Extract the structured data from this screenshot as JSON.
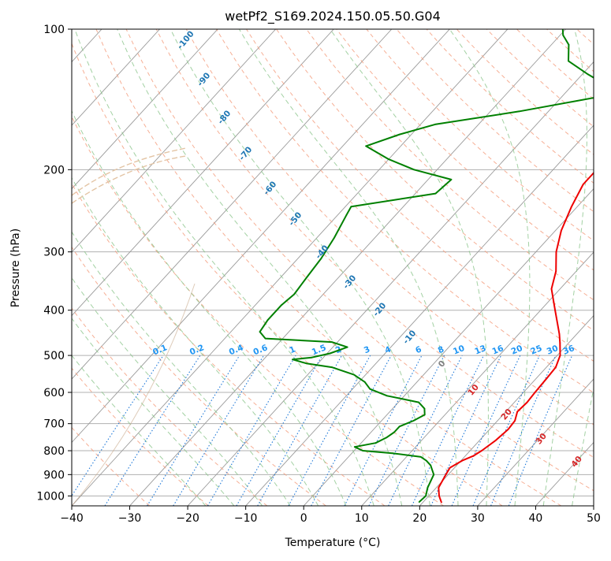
{
  "chart_data": {
    "type": "line",
    "subtype": "skew-t log-p",
    "title": "wetPf2_S169.2024.150.05.50.G04",
    "xlabel": "Temperature (°C)",
    "ylabel": "Pressure (hPa)",
    "xlim": [
      -40,
      50
    ],
    "ylim": [
      1050,
      100
    ],
    "y_scale": "log",
    "grid": true,
    "xticks": [
      "−40",
      "−30",
      "−20",
      "−10",
      "0",
      "10",
      "20",
      "30",
      "40",
      "50"
    ],
    "yticks": [
      "1000",
      "900",
      "800",
      "700",
      "600",
      "500",
      "400",
      "300",
      "200",
      "100"
    ],
    "series": [
      {
        "role": "temperature",
        "color": "#ee0000",
        "points": [
          {
            "p": 1032,
            "t": 23.2
          },
          {
            "p": 1000,
            "t": 21.8
          },
          {
            "p": 960,
            "t": 20.4
          },
          {
            "p": 900,
            "t": 19.6
          },
          {
            "p": 870,
            "t": 19.2
          },
          {
            "p": 840,
            "t": 20.2
          },
          {
            "p": 820,
            "t": 21.4
          },
          {
            "p": 800,
            "t": 22.0
          },
          {
            "p": 760,
            "t": 22.8
          },
          {
            "p": 720,
            "t": 23.2
          },
          {
            "p": 690,
            "t": 23.0
          },
          {
            "p": 660,
            "t": 22.0
          },
          {
            "p": 630,
            "t": 22.2
          },
          {
            "p": 600,
            "t": 22.0
          },
          {
            "p": 560,
            "t": 21.8
          },
          {
            "p": 530,
            "t": 21.6
          },
          {
            "p": 500,
            "t": 20.5
          },
          {
            "p": 470,
            "t": 18.5
          },
          {
            "p": 450,
            "t": 17.0
          },
          {
            "p": 400,
            "t": 12.5
          },
          {
            "p": 360,
            "t": 8.5
          },
          {
            "p": 330,
            "t": 6.5
          },
          {
            "p": 300,
            "t": 3.5
          },
          {
            "p": 270,
            "t": 1.0
          },
          {
            "p": 240,
            "t": -1.0
          },
          {
            "p": 215,
            "t": -2.5
          },
          {
            "p": 200,
            "t": -2.5
          },
          {
            "p": 185,
            "t": -1.5
          },
          {
            "p": 165,
            "t": 0.2
          },
          {
            "p": 150,
            "t": 0.7
          },
          {
            "p": 140,
            "t": 0.5
          },
          {
            "p": 130,
            "t": 0.8
          },
          {
            "p": 120,
            "t": 1.5
          },
          {
            "p": 110,
            "t": 1.5
          },
          {
            "p": 100,
            "t": 1.0
          }
        ]
      },
      {
        "role": "dewpoint",
        "color": "#008000",
        "points": [
          {
            "p": 1030,
            "t": 19.3
          },
          {
            "p": 1000,
            "t": 19.5
          },
          {
            "p": 960,
            "t": 18.5
          },
          {
            "p": 930,
            "t": 18.0
          },
          {
            "p": 900,
            "t": 17.5
          },
          {
            "p": 860,
            "t": 15.5
          },
          {
            "p": 840,
            "t": 14.0
          },
          {
            "p": 825,
            "t": 12.5
          },
          {
            "p": 810,
            "t": 7.0
          },
          {
            "p": 800,
            "t": 1.5
          },
          {
            "p": 785,
            "t": -0.5
          },
          {
            "p": 770,
            "t": 2.5
          },
          {
            "p": 750,
            "t": 3.5
          },
          {
            "p": 730,
            "t": 4.0
          },
          {
            "p": 710,
            "t": 4.0
          },
          {
            "p": 690,
            "t": 5.5
          },
          {
            "p": 670,
            "t": 6.5
          },
          {
            "p": 650,
            "t": 5.5
          },
          {
            "p": 630,
            "t": 3.5
          },
          {
            "p": 610,
            "t": -3.0
          },
          {
            "p": 590,
            "t": -7.0
          },
          {
            "p": 570,
            "t": -9.0
          },
          {
            "p": 550,
            "t": -12.0
          },
          {
            "p": 530,
            "t": -17.0
          },
          {
            "p": 520,
            "t": -22.0
          },
          {
            "p": 510,
            "t": -25.0
          },
          {
            "p": 505,
            "t": -22.0
          },
          {
            "p": 495,
            "t": -19.5
          },
          {
            "p": 480,
            "t": -17.5
          },
          {
            "p": 468,
            "t": -21.0
          },
          {
            "p": 460,
            "t": -33.0
          },
          {
            "p": 445,
            "t": -35.0
          },
          {
            "p": 420,
            "t": -35.5
          },
          {
            "p": 390,
            "t": -35.5
          },
          {
            "p": 370,
            "t": -35.0
          },
          {
            "p": 340,
            "t": -35.5
          },
          {
            "p": 310,
            "t": -36.0
          },
          {
            "p": 280,
            "t": -37.0
          },
          {
            "p": 250,
            "t": -38.5
          },
          {
            "p": 240,
            "t": -39.0
          },
          {
            "p": 225,
            "t": -26.5
          },
          {
            "p": 210,
            "t": -26.0
          },
          {
            "p": 200,
            "t": -34.0
          },
          {
            "p": 190,
            "t": -40.0
          },
          {
            "p": 178,
            "t": -46.0
          },
          {
            "p": 168,
            "t": -42.0
          },
          {
            "p": 160,
            "t": -37.5
          },
          {
            "p": 150,
            "t": -25.0
          },
          {
            "p": 140,
            "t": -14.0
          },
          {
            "p": 132,
            "t": -14.0
          },
          {
            "p": 125,
            "t": -19.0
          },
          {
            "p": 117,
            "t": -24.5
          },
          {
            "p": 108,
            "t": -27.0
          },
          {
            "p": 103,
            "t": -29.5
          },
          {
            "p": 100,
            "t": -30.5
          }
        ]
      }
    ],
    "dry_adiabat_labels": [
      "-100",
      "-90",
      "-80",
      "-70",
      "-60",
      "-50",
      "-40",
      "-30",
      "-20",
      "-10",
      "0",
      "10",
      "20",
      "30",
      "40"
    ],
    "mixing_ratio_labels": [
      "0.1",
      "0.2",
      "0.4",
      "0.6",
      "1",
      "1.5",
      "2",
      "3",
      "4",
      "6",
      "8",
      "10",
      "13",
      "16",
      "20",
      "25",
      "30",
      "36"
    ],
    "colors": {
      "isotherm": "#8a8a8a",
      "isobar": "#aaaaaa",
      "dry_adiabat": "#f4a183",
      "moist_adiabat": "#8cc68c",
      "mixing_ratio": "#1e78d8",
      "adiabat_label_cold": "#1f77b4",
      "adiabat_label_zero": "#808080",
      "adiabat_label_warm": "#d62728",
      "mixing_label": "#2196f3",
      "hodograph_arc": "#e3c4a4"
    }
  }
}
